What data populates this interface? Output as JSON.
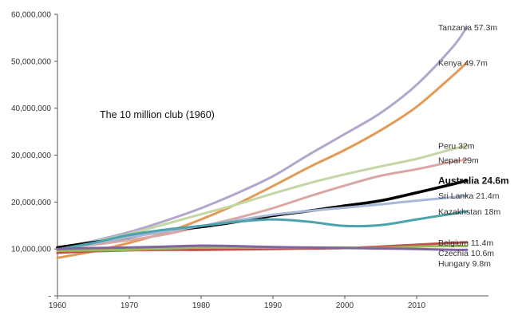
{
  "chart_data": {
    "type": "line",
    "title": "",
    "annotation": "The 10 million club (1960)",
    "xlabel": "",
    "ylabel": "",
    "xlim": [
      1960,
      2020
    ],
    "ylim": [
      0,
      60000000
    ],
    "x_ticks": [
      1960,
      1970,
      1980,
      1990,
      2000,
      2010
    ],
    "x_tick_labels": [
      "1960",
      "1970",
      "1980",
      "1990",
      "2000",
      "2010"
    ],
    "y_ticks": [
      0,
      10000000,
      20000000,
      30000000,
      40000000,
      50000000,
      60000000
    ],
    "y_tick_labels": [
      "-",
      "10,000,000",
      "20,000,000",
      "30,000,000",
      "40,000,000",
      "50,000,000",
      "60,000,000"
    ],
    "grid": false,
    "legend": "labels at line ends, right",
    "x": [
      1960,
      1965,
      1970,
      1975,
      1980,
      1985,
      1990,
      1995,
      2000,
      2005,
      2010,
      2015,
      2017
    ],
    "series": [
      {
        "name": "Tanzania",
        "end_label": "Tanzania 57.3m",
        "color": "#b3a6cc",
        "width": 3,
        "emphasis": false,
        "values": [
          10100000,
          11700000,
          13600000,
          16000000,
          18700000,
          21900000,
          25500000,
          30100000,
          34500000,
          39000000,
          45000000,
          53000000,
          57300000
        ]
      },
      {
        "name": "Kenya",
        "end_label": "Kenya 49.7m",
        "color": "#e39a57",
        "width": 3,
        "emphasis": false,
        "values": [
          8100000,
          9500000,
          11300000,
          13500000,
          16300000,
          19600000,
          23400000,
          27400000,
          31100000,
          35300000,
          40300000,
          46900000,
          49700000
        ]
      },
      {
        "name": "Peru",
        "end_label": "Peru 32m",
        "color": "#c3d6a4",
        "width": 3,
        "emphasis": false,
        "values": [
          10000000,
          11500000,
          13200000,
          15300000,
          17400000,
          19500000,
          21800000,
          24000000,
          25900000,
          27600000,
          29200000,
          31300000,
          32000000
        ]
      },
      {
        "name": "Nepal",
        "end_label": "Nepal 29m",
        "color": "#daa7a4",
        "width": 3,
        "emphasis": false,
        "values": [
          10100000,
          10900000,
          11900000,
          13100000,
          14800000,
          16600000,
          18700000,
          21200000,
          23500000,
          25600000,
          27000000,
          28600000,
          29000000
        ]
      },
      {
        "name": "Australia",
        "end_label": "Australia 24.6m",
        "color": "#000000",
        "width": 3.6,
        "emphasis": true,
        "values": [
          10300000,
          11400000,
          12500000,
          13900000,
          14700000,
          15800000,
          17100000,
          18100000,
          19200000,
          20300000,
          22000000,
          23800000,
          24600000
        ]
      },
      {
        "name": "Sri Lanka",
        "end_label": "Sri Lanka 21.4m",
        "color": "#a7b9d6",
        "width": 3,
        "emphasis": false,
        "values": [
          9900000,
          11200000,
          12500000,
          13700000,
          14900000,
          16100000,
          17300000,
          18100000,
          18800000,
          19500000,
          20300000,
          21000000,
          21400000
        ]
      },
      {
        "name": "Kazakhstan",
        "end_label": "Kazakhstan 18m",
        "color": "#4aa3ad",
        "width": 3,
        "emphasis": false,
        "values": [
          9900000,
          11300000,
          13000000,
          14100000,
          14900000,
          15800000,
          16300000,
          15800000,
          14900000,
          15100000,
          16300000,
          17500000,
          18000000
        ]
      },
      {
        "name": "Belgium",
        "end_label": "Belgium 11.4m",
        "color": "#c0504d",
        "width": 3,
        "emphasis": false,
        "values": [
          9200000,
          9500000,
          9700000,
          9800000,
          9800000,
          9900000,
          10000000,
          10100000,
          10200000,
          10500000,
          10900000,
          11300000,
          11400000
        ]
      },
      {
        "name": "Czechia",
        "end_label": "Czechia 10.6m",
        "color": "#9bbb59",
        "width": 3,
        "emphasis": false,
        "values": [
          9600000,
          9700000,
          9800000,
          10100000,
          10300000,
          10300000,
          10300000,
          10300000,
          10300000,
          10200000,
          10500000,
          10600000,
          10600000
        ]
      },
      {
        "name": "Hungary",
        "end_label": "Hungary 9.8m",
        "color": "#8064a2",
        "width": 3,
        "emphasis": false,
        "values": [
          10000000,
          10200000,
          10300000,
          10500000,
          10700000,
          10600000,
          10400000,
          10300000,
          10200000,
          10100000,
          10000000,
          9800000,
          9800000
        ]
      }
    ]
  }
}
